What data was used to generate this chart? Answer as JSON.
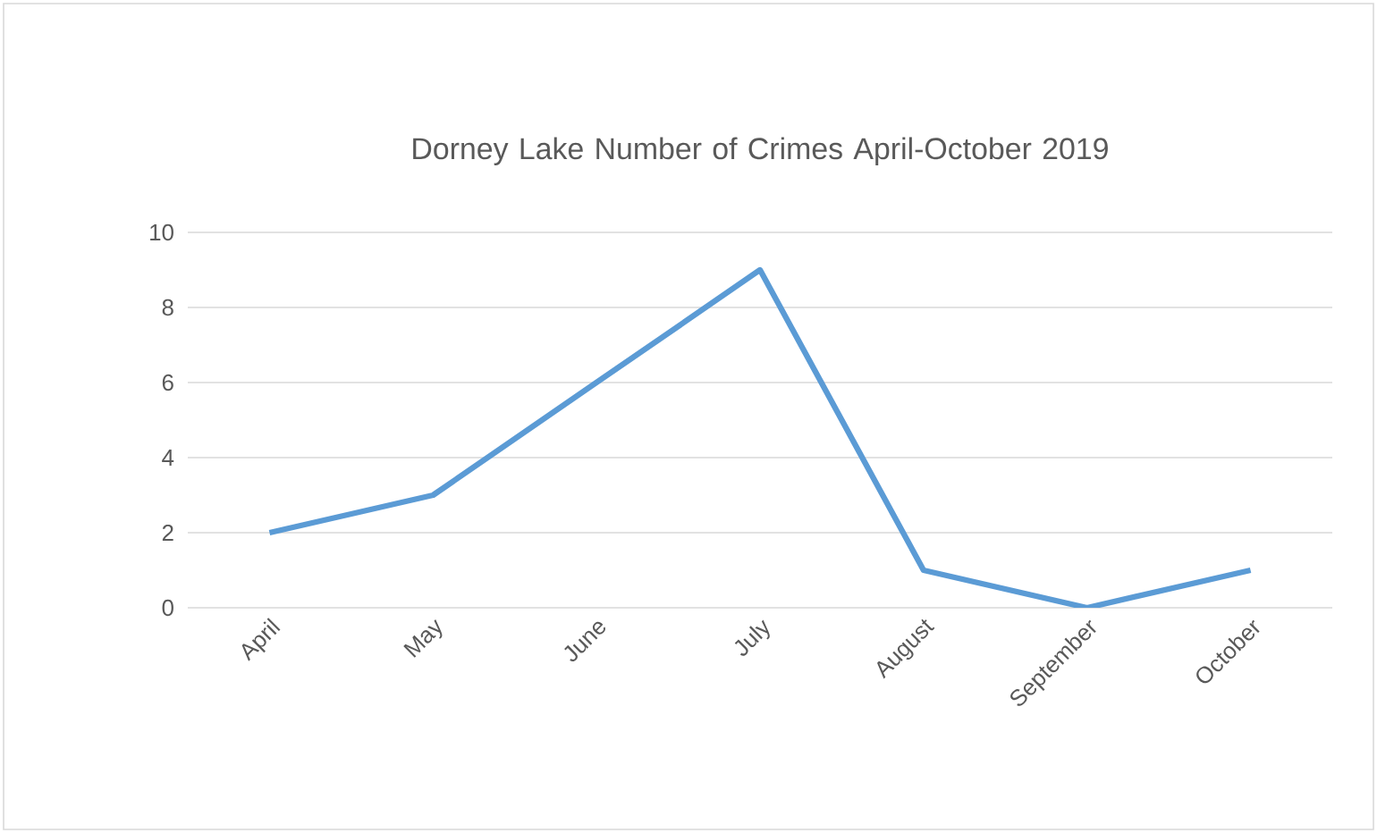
{
  "chart_data": {
    "type": "line",
    "title": "Dorney Lake Number of Crimes April-October 2019",
    "categories": [
      "April",
      "May",
      "June",
      "July",
      "August",
      "September",
      "October"
    ],
    "values": [
      2,
      3,
      6,
      9,
      1,
      0,
      1
    ],
    "color": "#5b9bd5",
    "ylim": [
      0,
      10
    ],
    "yticks": [
      0,
      2,
      4,
      6,
      8,
      10
    ],
    "grid": "y",
    "marker": "none",
    "line_style": "solid"
  }
}
